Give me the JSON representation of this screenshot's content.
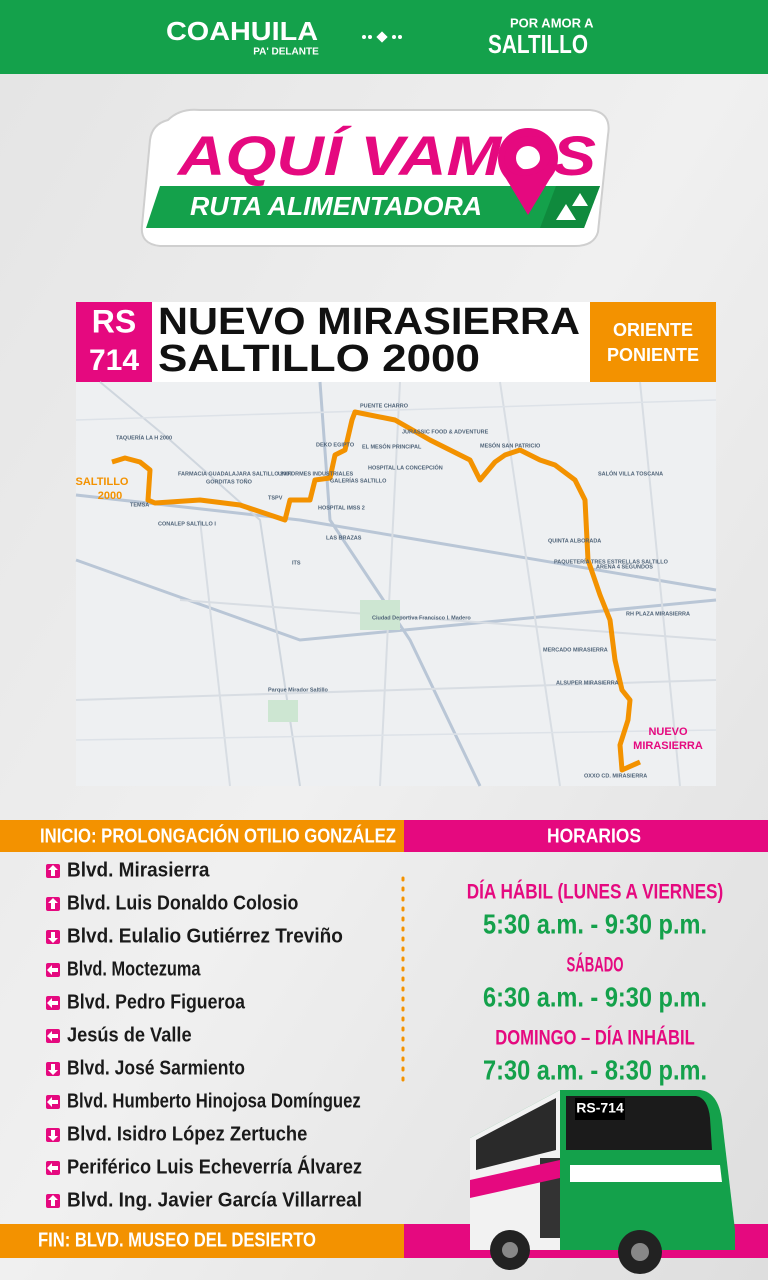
{
  "header": {
    "logo_left": "COAHUILA",
    "logo_left_sub": "PA' DELANTE",
    "logo_right_top": "POR AMOR A",
    "logo_right": "SALTILLO"
  },
  "brand": {
    "title": "AQUÍ VAMOS",
    "subtitle": "RUTA ALIMENTADORA"
  },
  "route": {
    "code": "RS",
    "number": "714",
    "name_line1": "NUEVO MIRASIERRA",
    "name_line2": "SALTILLO 2000",
    "direction_line1": "ORIENTE",
    "direction_line2": "PONIENTE"
  },
  "map": {
    "start_label": [
      "SALTILLO",
      "2000"
    ],
    "end_label": [
      "NUEVO",
      "MIRASIERRA"
    ],
    "labels": [
      "TAQUERÍA LA H 2000",
      "FARMACIA GUADALAJARA SALTILLO 2000",
      "TEMSA",
      "CONALEP SALTILLO I",
      "GORDITAS TOÑO",
      "TSPV",
      "UNIFORMES INDUSTRIALES",
      "DEKO EGIPTO",
      "PUENTE CHARRO",
      "EL MESÓN PRINCIPAL",
      "GALERÍAS SALTILLO",
      "HOSPITAL LA CONCEPCIÓN",
      "JURASSIC FOOD & ADVENTURE",
      "HOSPITAL IMSS 2",
      "LAS BRAZAS",
      "ITS",
      "MESÓN SAN PATRICIO",
      "SALÓN VILLA TOSCANA",
      "QUINTA ALBORADA",
      "PAQUETERÍA TRES ESTRELLAS SALTILLO",
      "ARENA 4 SEGUNDOS",
      "RH PLAZA MIRASIERRA",
      "MERCADO MIRASIERRA",
      "ALSUPER MIRASIERRA",
      "OXXO CD. MIRASIERRA",
      "Ciudad Deportiva Francisco I. Madero",
      "Parque Mirador Saltillo"
    ]
  },
  "itinerary": {
    "start": "INICIO: PROLONGACIÓN OTILIO GONZÁLEZ",
    "streets": [
      "Blvd. Mirasierra",
      "Blvd. Luis Donaldo Colosio",
      "Blvd. Eulalio Gutiérrez Treviño",
      "Blvd. Moctezuma",
      "Blvd. Pedro Figueroa",
      "Jesús de Valle",
      "Blvd. José Sarmiento",
      "Blvd. Humberto Hinojosa Domínguez",
      "Blvd. Isidro López Zertuche",
      "Periférico Luis Echeverría Álvarez",
      "Blvd. Ing. Javier García Villarreal"
    ],
    "end": "FIN: BLVD. MUSEO DEL DESIERTO"
  },
  "schedule": {
    "title": "HORARIOS",
    "blocks": [
      {
        "day": "DÍA HÁBIL (LUNES A VIERNES)",
        "hours": "5:30 a.m. - 9:30 p.m."
      },
      {
        "day": "SÁBADO",
        "hours": "6:30 a.m. - 9:30 p.m."
      },
      {
        "day": "DOMINGO – DÍA INHÁBIL",
        "hours": "7:30 a.m. - 8:30 p.m."
      }
    ]
  },
  "bus": {
    "sign": "RS-714"
  }
}
